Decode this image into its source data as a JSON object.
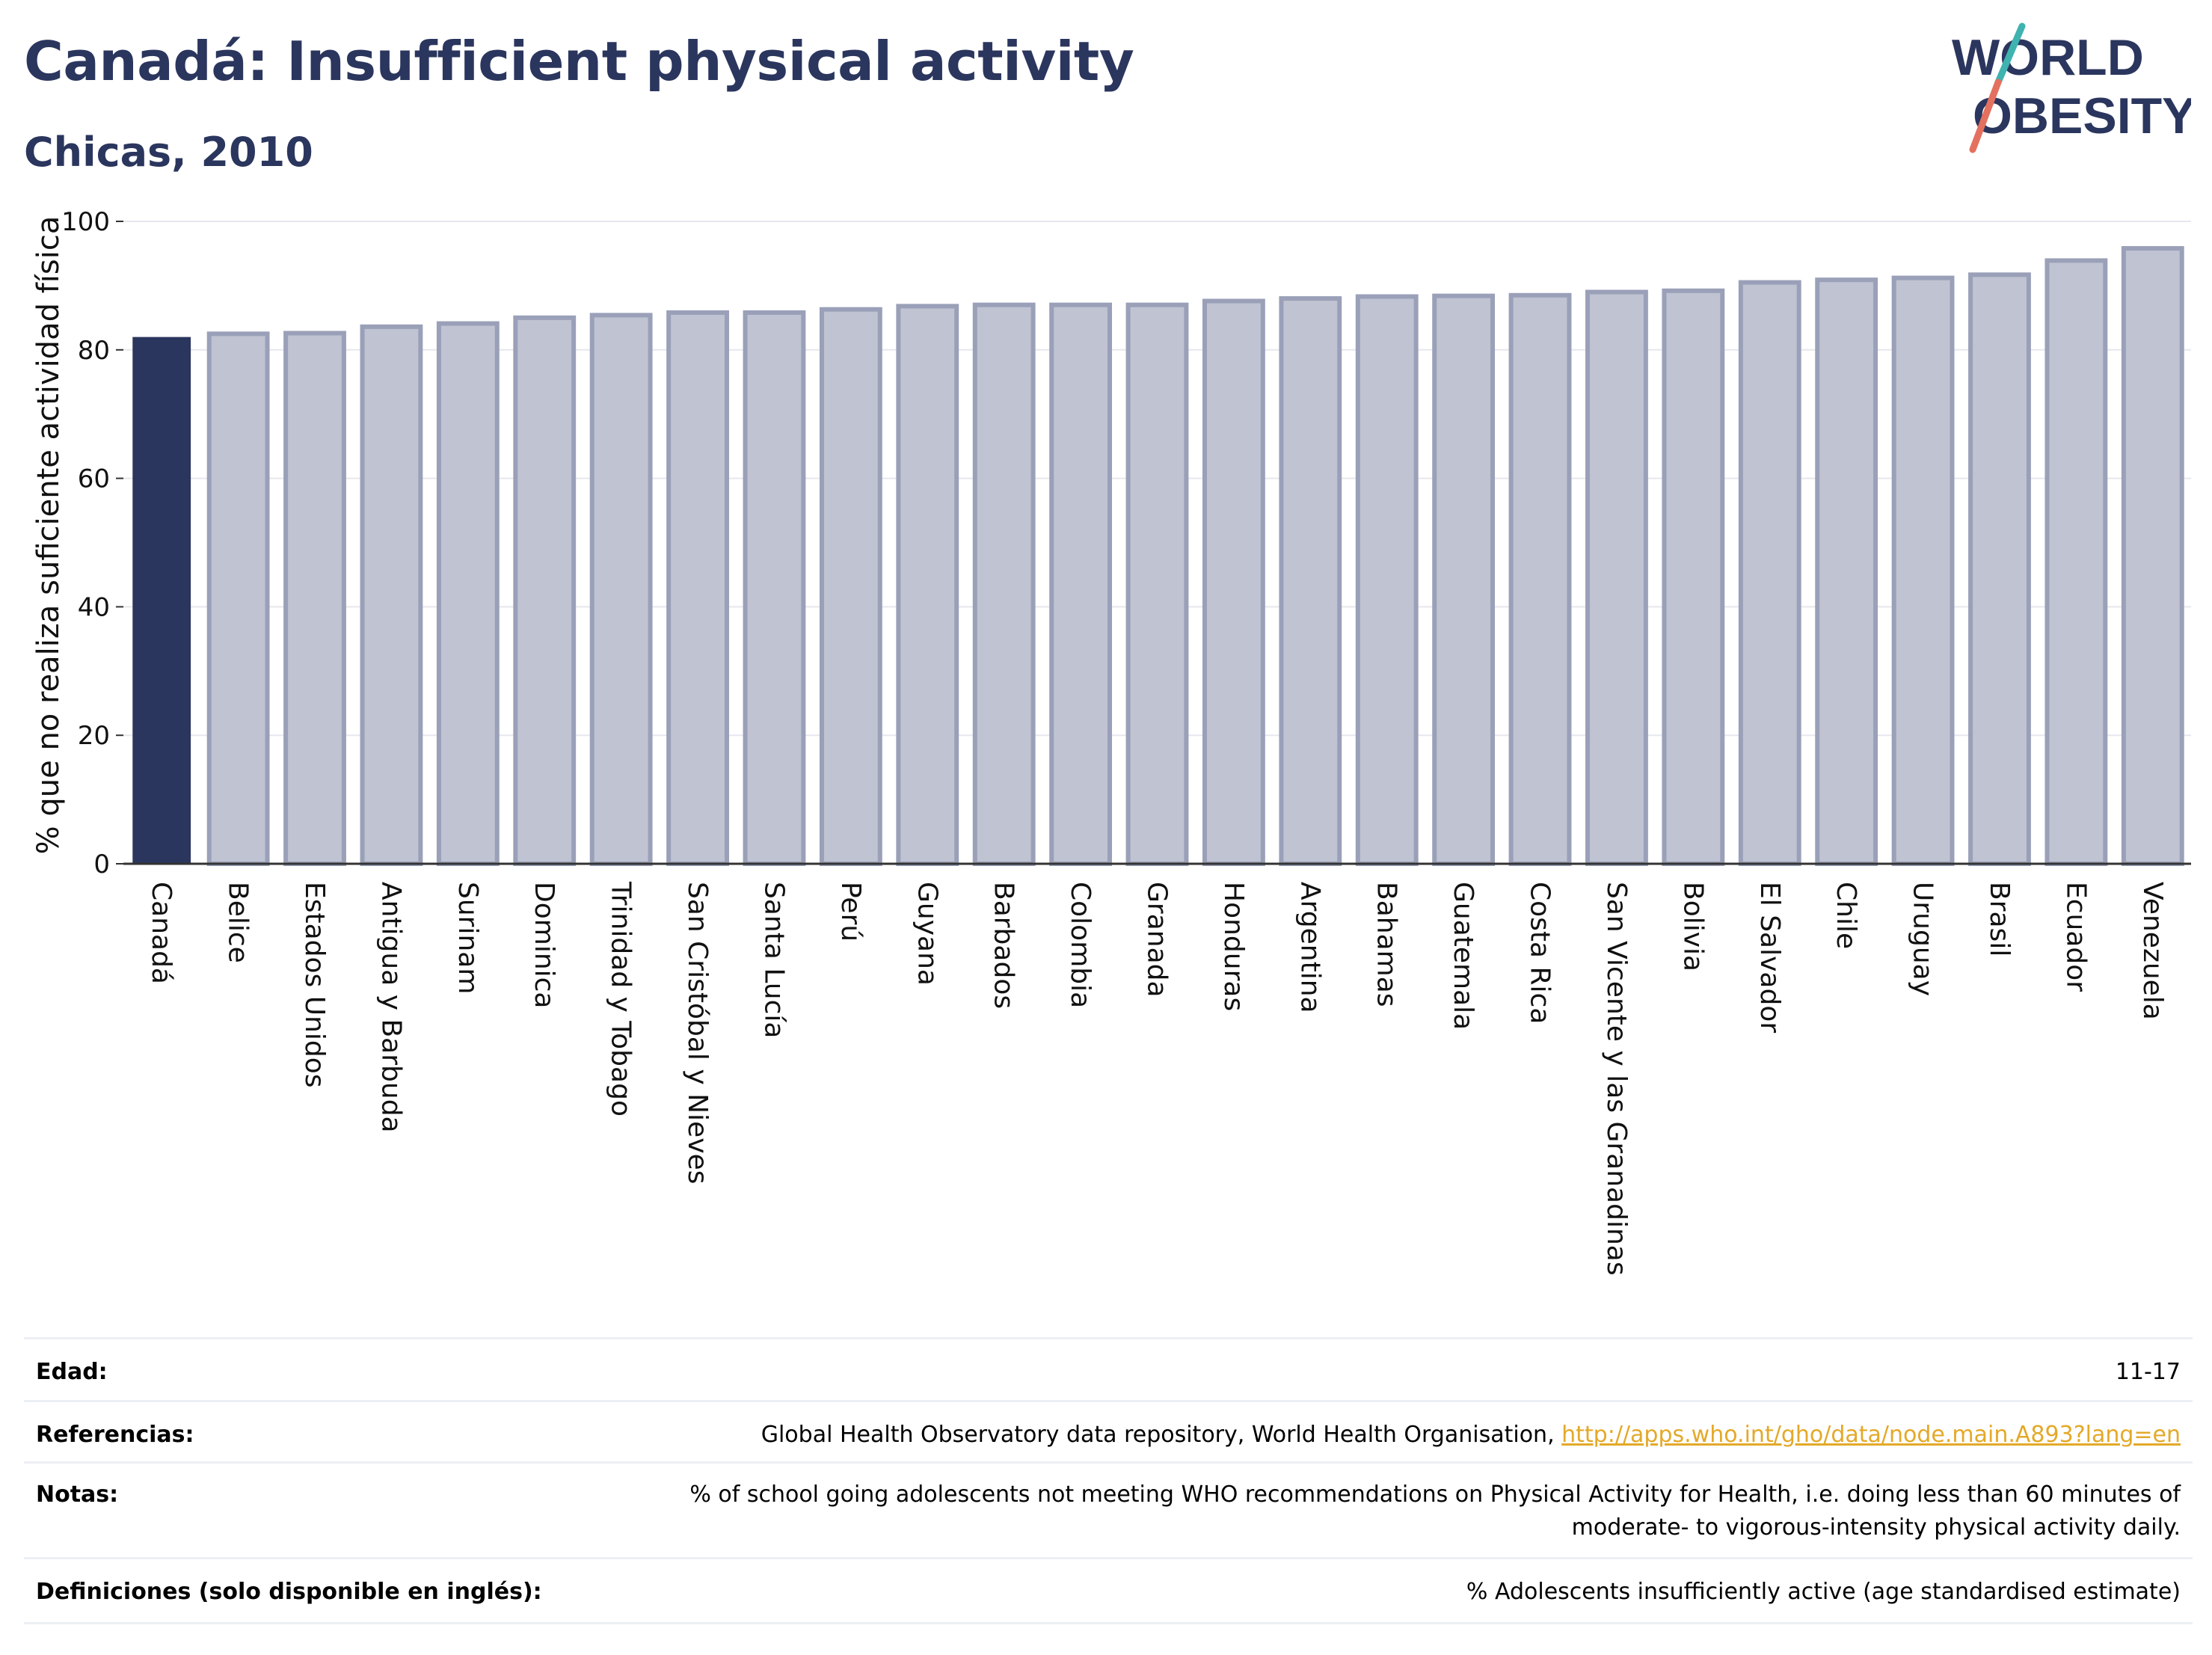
{
  "header": {
    "title": "Canadá: Insufficient physical activity",
    "subtitle": "Chicas, 2010"
  },
  "logo": {
    "line1": "WORLD",
    "line2": "OBESITY",
    "colors": {
      "text": "#2b365e",
      "slash_top": "#3fb3b0",
      "slash_bottom": "#e4705f"
    }
  },
  "chart_data": {
    "type": "bar",
    "ylabel": "% que no realiza suficiente actividad física",
    "xlabel": "",
    "ylim": [
      0,
      100
    ],
    "yticks": [
      0,
      20,
      40,
      60,
      80,
      100
    ],
    "grid": true,
    "highlight_color": "#2b365e",
    "bar_color": "#bfc3d2",
    "bar_edge_color": "#9aa0b8",
    "categories": [
      "Canadá",
      "Belice",
      "Estados Unidos",
      "Antigua y Barbuda",
      "Surinam",
      "Dominica",
      "Trinidad y Tobago",
      "San Cristóbal y Nieves",
      "Santa Lucía",
      "Perú",
      "Guyana",
      "Barbados",
      "Colombia",
      "Granada",
      "Honduras",
      "Argentina",
      "Bahamas",
      "Guatemala",
      "Costa Rica",
      "San Vicente y las Granadinas",
      "Bolivia",
      "El Salvador",
      "Chile",
      "Uruguay",
      "Brasil",
      "Ecuador",
      "Venezuela"
    ],
    "values": [
      82.0,
      82.5,
      82.6,
      83.6,
      84.1,
      85.0,
      85.4,
      85.8,
      85.8,
      86.3,
      86.8,
      87.0,
      87.0,
      87.0,
      87.6,
      88.0,
      88.3,
      88.4,
      88.5,
      89.0,
      89.2,
      90.5,
      90.9,
      91.2,
      91.7,
      93.9,
      95.8
    ],
    "highlight": "Canadá"
  },
  "info": {
    "rows": [
      {
        "key": "Edad:",
        "value": "11-17"
      },
      {
        "key": "Referencias:",
        "value": "Global Health Observatory data repository, World Health Organisation, ",
        "link": "http://apps.who.int/gho/data/node.main.A893?lang=en"
      },
      {
        "key": "Notas:",
        "value": "% of school going adolescents not meeting WHO recommendations on Physical Activity for Health, i.e. doing less than 60 minutes of moderate- to vigorous-intensity physical activity daily."
      },
      {
        "key": "Definiciones (solo disponible en inglés):",
        "value": "% Adolescents insufficiently active (age standardised estimate)"
      }
    ]
  }
}
